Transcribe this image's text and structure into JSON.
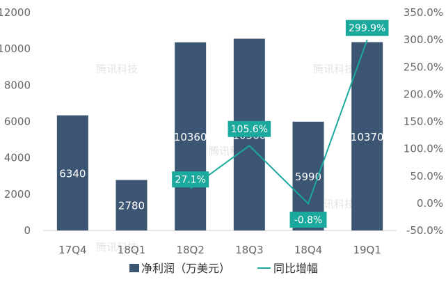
{
  "chart_data": {
    "type": "bar",
    "categories": [
      "17Q4",
      "18Q1",
      "18Q2",
      "18Q3",
      "18Q4",
      "19Q1"
    ],
    "series": [
      {
        "name": "净利润（万美元）",
        "type": "bar",
        "axis": "left",
        "values": [
          6340,
          2780,
          10360,
          10560,
          5990,
          10370
        ],
        "labels": [
          "6340",
          "2780",
          "10360",
          "10560",
          "5990",
          "10370"
        ]
      },
      {
        "name": "同比增幅",
        "type": "line",
        "axis": "right",
        "values": [
          null,
          null,
          27.1,
          105.6,
          -0.8,
          299.9
        ],
        "labels": [
          "",
          "",
          "27.1%",
          "105.6%",
          "-0.8%",
          "299.9%"
        ]
      }
    ],
    "y_left": {
      "min": 0,
      "max": 12000,
      "ticks": [
        "0",
        "2000",
        "4000",
        "6000",
        "8000",
        "10000",
        "12000"
      ]
    },
    "y_right": {
      "min": -50,
      "max": 350,
      "ticks": [
        "-50.0%",
        "0.0%",
        "50.0%",
        "100.0%",
        "150.0%",
        "200.0%",
        "250.0%",
        "300.0%",
        "350.0%"
      ]
    },
    "grid": false,
    "legend_position": "bottom",
    "colors": {
      "bar": "#3b5572",
      "line": "#1aa99c",
      "axis": "#d0d0d0",
      "text": "#666666"
    }
  },
  "watermark": "腾讯科技"
}
